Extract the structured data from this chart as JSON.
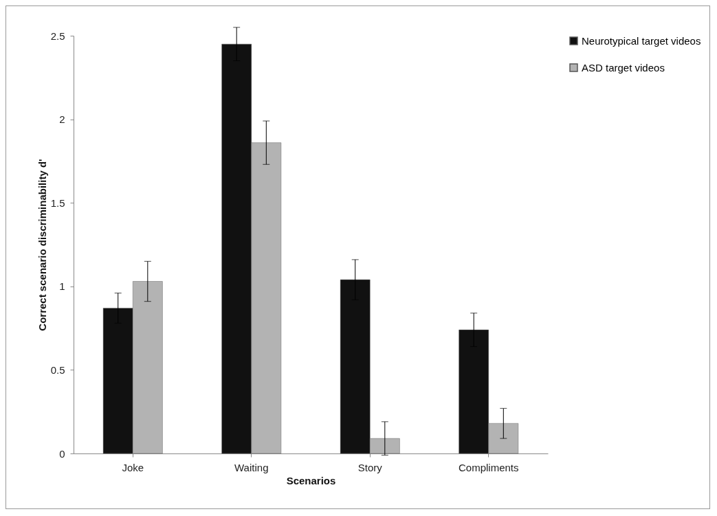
{
  "chart_data": {
    "type": "bar",
    "xlabel": "Scenarios",
    "ylabel": "Correct scenario discriminability d'",
    "categories": [
      "Joke",
      "Waiting",
      "Story",
      "Compliments"
    ],
    "series": [
      {
        "name": "Neurotypical target videos",
        "color": "#111111",
        "values": [
          0.87,
          2.45,
          1.04,
          0.74
        ],
        "errors": [
          0.09,
          0.1,
          0.12,
          0.1
        ]
      },
      {
        "name": "ASD target videos",
        "color": "#b3b3b3",
        "values": [
          1.03,
          1.86,
          0.09,
          0.18
        ],
        "errors": [
          0.12,
          0.13,
          0.1,
          0.09
        ]
      }
    ],
    "ylim": [
      0,
      2.5
    ],
    "yticks": [
      0,
      0.5,
      1,
      1.5,
      2,
      2.5
    ],
    "grid": false,
    "legend": "top right"
  }
}
